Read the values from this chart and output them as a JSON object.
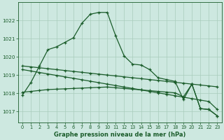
{
  "bg_color": "#cde8e0",
  "grid_color": "#a8ccbb",
  "line_color": "#1a5c2a",
  "marker": "+",
  "xlabel": "Graphe pression niveau de la mer (hPa)",
  "ylim": [
    1016.4,
    1023.0
  ],
  "xlim": [
    -0.5,
    23.5
  ],
  "yticks": [
    1017,
    1018,
    1019,
    1020,
    1021,
    1022
  ],
  "xticks": [
    0,
    1,
    2,
    3,
    4,
    5,
    6,
    7,
    8,
    9,
    10,
    11,
    12,
    13,
    14,
    15,
    16,
    17,
    18,
    19,
    20,
    21,
    22,
    23
  ],
  "s1": [
    1017.9,
    1018.6,
    1019.5,
    1020.4,
    1020.55,
    1020.8,
    1021.05,
    1021.85,
    1022.35,
    1022.45,
    1022.45,
    1021.15,
    1020.05,
    1019.6,
    1019.55,
    1019.3,
    1018.85,
    1018.75,
    1018.65,
    1017.65,
    1018.5,
    1017.15,
    1017.1,
    1016.75
  ],
  "s2": [
    1019.5,
    1019.45,
    1019.4,
    1019.35,
    1019.3,
    1019.25,
    1019.2,
    1019.15,
    1019.1,
    1019.05,
    1019.0,
    1018.95,
    1018.9,
    1018.85,
    1018.8,
    1018.75,
    1018.7,
    1018.65,
    1018.6,
    1018.55,
    1018.5,
    1018.45,
    1018.4,
    1018.35
  ],
  "s3": [
    1019.3,
    1019.22,
    1019.14,
    1019.06,
    1018.98,
    1018.9,
    1018.82,
    1018.74,
    1018.66,
    1018.58,
    1018.5,
    1018.42,
    1018.34,
    1018.26,
    1018.18,
    1018.1,
    1018.02,
    1017.94,
    1017.86,
    1017.78,
    1017.7,
    1017.62,
    1017.54,
    1017.1
  ],
  "s4": [
    1018.05,
    1018.1,
    1018.15,
    1018.2,
    1018.22,
    1018.24,
    1018.26,
    1018.28,
    1018.3,
    1018.32,
    1018.34,
    1018.3,
    1018.26,
    1018.22,
    1018.18,
    1018.14,
    1018.1,
    1018.06,
    1018.02,
    1017.8,
    1018.5,
    1017.15,
    1017.1,
    1016.75
  ]
}
